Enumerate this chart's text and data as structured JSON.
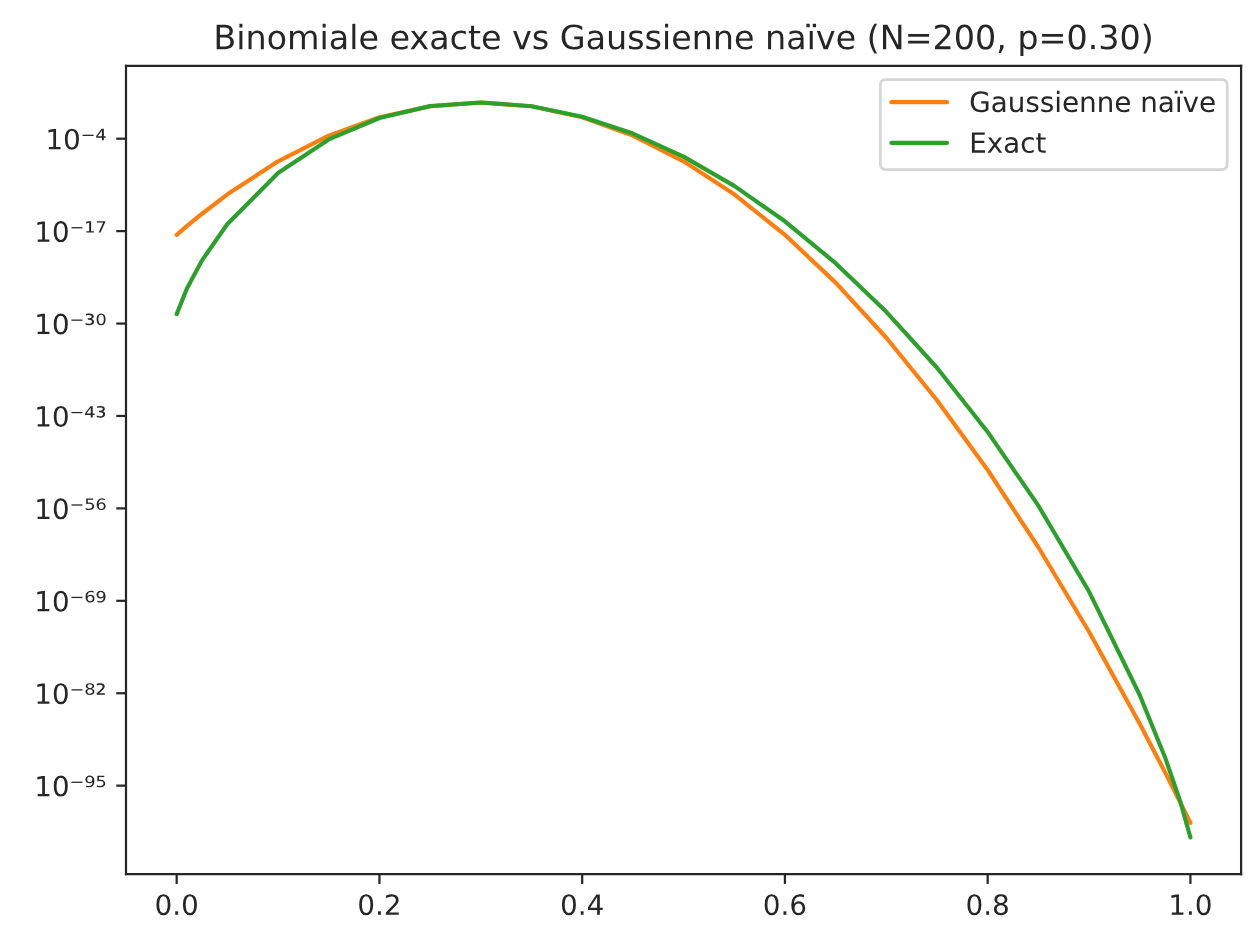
{
  "chart_data": {
    "type": "line",
    "title": "Binomiale exacte vs Gaussienne naïve (N=200, p=0.30)",
    "x": [
      0,
      0.01,
      0.025,
      0.05,
      0.1,
      0.15,
      0.2,
      0.25,
      0.3,
      0.35,
      0.4,
      0.45,
      0.5,
      0.55,
      0.6,
      0.65,
      0.7,
      0.75,
      0.8,
      0.85,
      0.9,
      0.95,
      0.975,
      0.99,
      1.0
    ],
    "series": [
      {
        "name": "Gaussienne naïve",
        "color": "#ff7f0e",
        "values": [
          3e-18,
          5e-17,
          2.8e-15,
          1.5e-12,
          6.6e-08,
          0.00027,
          0.105,
          3.7,
          12.3,
          3.7,
          0.105,
          0.00027,
          6.6e-08,
          1.5e-12,
          3e-18,
          5.7e-25,
          1e-32,
          1.6e-41,
          2.5e-51,
          3.4e-62,
          4.4e-74,
          5.2e-87,
          7.4e-94,
          4.3e-98,
          5.7e-101
        ]
      },
      {
        "name": "Exact",
        "color": "#2ca02c",
        "values": [
          2.1e-29,
          7.7e-26,
          7.7e-22,
          9.9e-17,
          1.5e-09,
          7.9e-05,
          0.082,
          3.8,
          12.3,
          3.7,
          0.126,
          0.00053,
          3e-07,
          2.3e-11,
          2.4e-16,
          3.1e-22,
          4.5e-29,
          6.1e-37,
          5.7e-46,
          2.4e-56,
          2e-68,
          5.7e-83,
          9.3e-92,
          5.8e-98,
          5.2e-103
        ]
      }
    ],
    "log": "y",
    "xlim": [
      -0.05,
      1.05
    ],
    "xticks": [
      {
        "value": 0,
        "label": "0.0"
      },
      {
        "value": 0.2,
        "label": "0.2"
      },
      {
        "value": 0.4,
        "label": "0.4"
      },
      {
        "value": 0.6,
        "label": "0.6"
      },
      {
        "value": 0.8,
        "label": "0.8"
      },
      {
        "value": 1.0,
        "label": "1.0"
      }
    ],
    "ylim": [
      3.5e-108,
      1800000.0
    ],
    "yticks": [
      {
        "value": 0.0001,
        "label": "10⁻⁴"
      },
      {
        "value": 1e-17,
        "label": "10⁻¹⁷"
      },
      {
        "value": 1e-30,
        "label": "10⁻³⁰"
      },
      {
        "value": 1e-43,
        "label": "10⁻⁴³"
      },
      {
        "value": 1e-56,
        "label": "10⁻⁵⁶"
      },
      {
        "value": 1e-69,
        "label": "10⁻⁶⁹"
      },
      {
        "value": 1e-82,
        "label": "10⁻⁸²"
      },
      {
        "value": 1e-95,
        "label": "10⁻⁹⁵"
      }
    ],
    "grid": false,
    "legend": "top right",
    "marker": "none",
    "line_style": "solid"
  }
}
